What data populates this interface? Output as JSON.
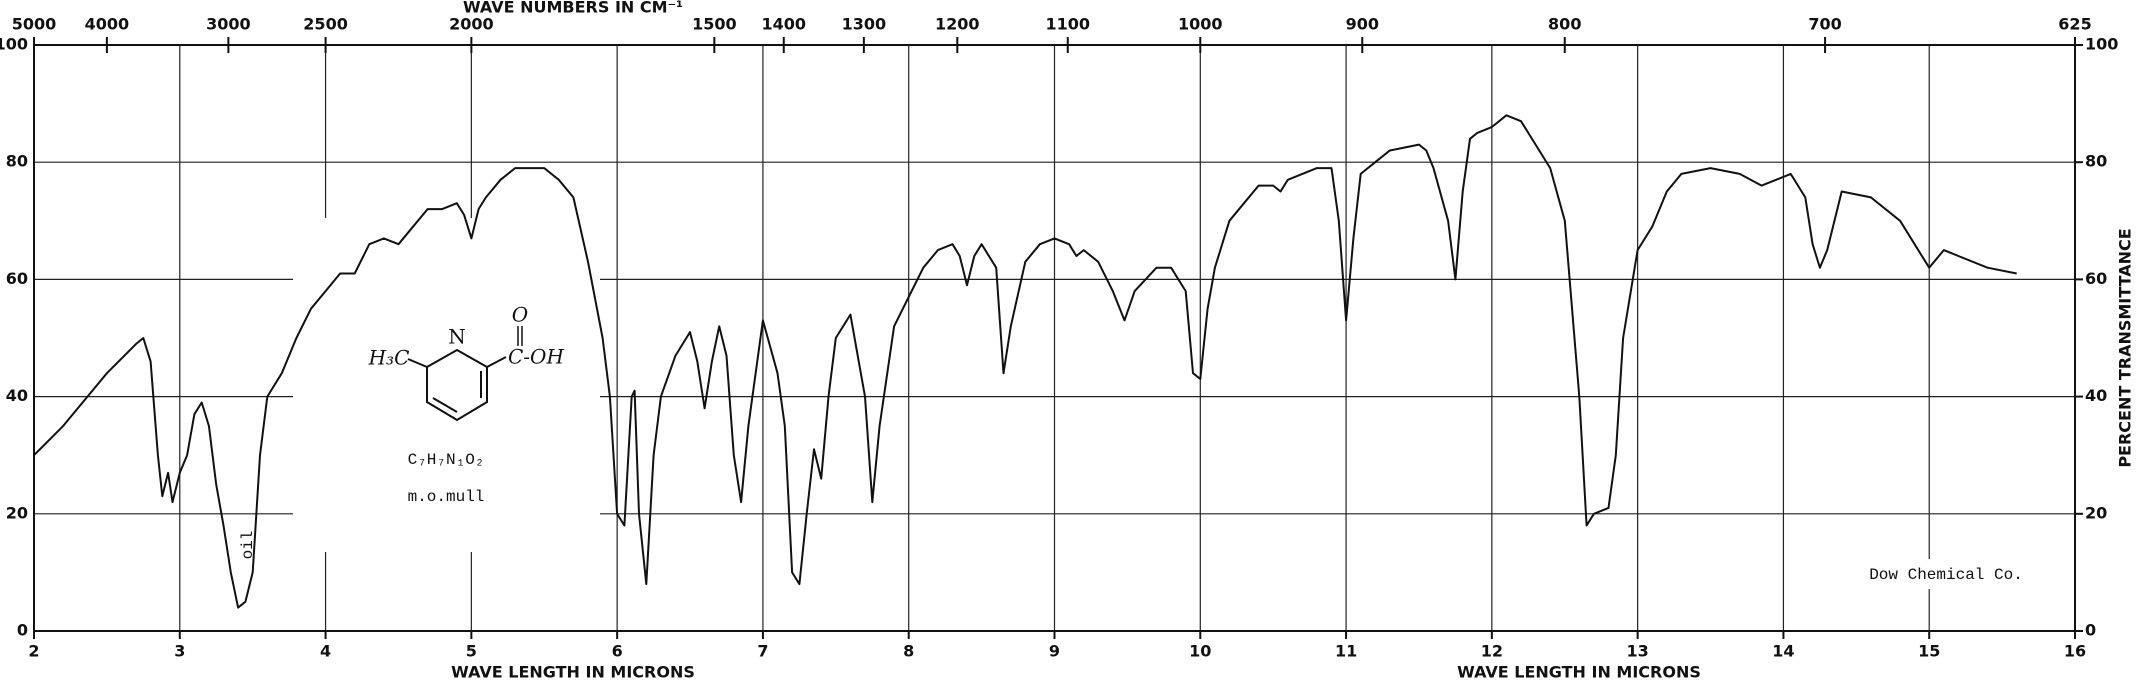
{
  "chart_data": {
    "type": "line",
    "title": "WAVE NUMBERS IN CM⁻¹",
    "x_label": "WAVE LENGTH IN MICRONS",
    "y2_label": "PERCENT TRANSMITTANCE",
    "color": "#111111",
    "grid": true,
    "xlim": [
      2,
      16
    ],
    "xticks": [
      2,
      3,
      4,
      5,
      6,
      7,
      8,
      9,
      10,
      11,
      12,
      13,
      14,
      15,
      16
    ],
    "ylim": [
      0,
      100
    ],
    "yticks": [
      0,
      20,
      40,
      60,
      80,
      100
    ],
    "y2lim": [
      0,
      100
    ],
    "y2ticks": [
      0,
      20,
      40,
      60,
      80,
      100
    ],
    "x2_scale": "reciprocal",
    "x2ticks": [
      5000,
      4000,
      3000,
      2500,
      2000,
      1500,
      1400,
      1300,
      1200,
      1100,
      1000,
      900,
      800,
      700,
      625
    ],
    "x": [
      2,
      2.2,
      2.5,
      2.7,
      2.75,
      2.8,
      2.85,
      2.88,
      2.92,
      2.95,
      3.0,
      3.05,
      3.1,
      3.15,
      3.2,
      3.25,
      3.3,
      3.35,
      3.4,
      3.45,
      3.5,
      3.55,
      3.6,
      3.7,
      3.8,
      3.9,
      4.0,
      4.1,
      4.2,
      4.3,
      4.4,
      4.5,
      4.6,
      4.7,
      4.8,
      4.9,
      4.95,
      5.0,
      5.05,
      5.1,
      5.2,
      5.3,
      5.4,
      5.5,
      5.6,
      5.7,
      5.8,
      5.9,
      5.95,
      6.0,
      6.05,
      6.1,
      6.12,
      6.15,
      6.2,
      6.25,
      6.3,
      6.4,
      6.5,
      6.55,
      6.6,
      6.65,
      6.7,
      6.75,
      6.8,
      6.85,
      6.9,
      7.0,
      7.1,
      7.15,
      7.2,
      7.25,
      7.3,
      7.35,
      7.4,
      7.45,
      7.5,
      7.6,
      7.7,
      7.75,
      7.8,
      7.9,
      8.0,
      8.1,
      8.2,
      8.3,
      8.35,
      8.4,
      8.45,
      8.5,
      8.6,
      8.65,
      8.7,
      8.8,
      8.9,
      9.0,
      9.1,
      9.15,
      9.2,
      9.3,
      9.4,
      9.48,
      9.55,
      9.7,
      9.8,
      9.9,
      9.95,
      10.0,
      10.05,
      10.1,
      10.2,
      10.3,
      10.4,
      10.5,
      10.55,
      10.6,
      10.7,
      10.8,
      10.9,
      10.95,
      11.0,
      11.05,
      11.1,
      11.2,
      11.3,
      11.5,
      11.55,
      11.6,
      11.7,
      11.75,
      11.8,
      11.85,
      11.9,
      12.0,
      12.1,
      12.2,
      12.3,
      12.4,
      12.5,
      12.6,
      12.65,
      12.7,
      12.8,
      12.85,
      12.9,
      13.0,
      13.1,
      13.2,
      13.3,
      13.5,
      13.7,
      13.85,
      13.95,
      14.05,
      14.15,
      14.2,
      14.25,
      14.3,
      14.4,
      14.6,
      14.8,
      14.9,
      15.0,
      15.1,
      15.2,
      15.4,
      15.6
    ],
    "values": [
      30,
      35,
      44,
      49,
      50,
      46,
      30,
      23,
      27,
      22,
      27,
      30,
      37,
      39,
      35,
      25,
      18,
      10,
      4,
      5,
      10,
      30,
      40,
      44,
      50,
      55,
      58,
      61,
      61,
      66,
      67,
      66,
      69,
      72,
      72,
      73,
      71,
      67,
      72,
      74,
      77,
      79,
      79,
      79,
      77,
      74,
      63,
      50,
      40,
      20,
      18,
      40,
      41,
      20,
      8,
      30,
      40,
      47,
      51,
      46,
      38,
      46,
      52,
      47,
      30,
      22,
      35,
      53,
      44,
      35,
      10,
      8,
      20,
      31,
      26,
      40,
      50,
      54,
      40,
      22,
      35,
      52,
      57,
      62,
      65,
      66,
      64,
      59,
      64,
      66,
      62,
      44,
      52,
      63,
      66,
      67,
      66,
      64,
      65,
      63,
      58,
      53,
      58,
      62,
      62,
      58,
      44,
      43,
      55,
      62,
      70,
      73,
      76,
      76,
      75,
      77,
      78,
      79,
      79,
      70,
      53,
      67,
      78,
      80,
      82,
      83,
      82,
      79,
      70,
      60,
      75,
      84,
      85,
      86,
      88,
      87,
      83,
      79,
      70,
      40,
      18,
      20,
      21,
      30,
      50,
      65,
      69,
      75,
      78,
      79,
      78,
      76,
      77,
      78,
      74,
      66,
      62,
      65,
      75,
      74,
      70,
      66,
      62,
      65,
      64,
      62,
      61
    ],
    "annotations": {
      "oil": "oil",
      "formula": "C₇H₇N₁O₂",
      "sample": "m.o.mull",
      "source": "Dow Chemical Co.",
      "structure": {
        "methyl": "H₃C",
        "nitrogen": "N",
        "oxygen": "O",
        "acid": "C-OH"
      }
    }
  }
}
